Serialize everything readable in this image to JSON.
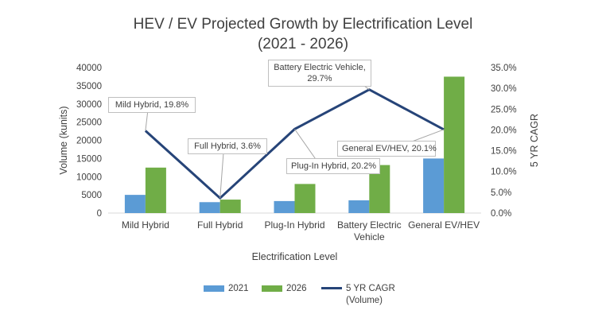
{
  "chart_data": {
    "type": "bar",
    "title_line1": "HEV / EV Projected Growth by Electrification Level",
    "title_line2": "(2021 - 2026)",
    "xlabel": "Electrification Level",
    "ylabel": "Volume (kunits)",
    "y2label": "5 YR CAGR",
    "categories": [
      [
        "Mild Hybrid"
      ],
      [
        "Full Hybrid"
      ],
      [
        "Plug-In Hybrid"
      ],
      [
        "Battery Electric",
        "Vehicle"
      ],
      [
        "General EV/HEV"
      ]
    ],
    "ylim": [
      0,
      40000
    ],
    "y_ticks": [
      "0",
      "5000",
      "10000",
      "15000",
      "20000",
      "25000",
      "30000",
      "35000",
      "40000"
    ],
    "y2lim": [
      0,
      0.35
    ],
    "y2_ticks": [
      "0.0%",
      "5.0%",
      "10.0%",
      "15.0%",
      "20.0%",
      "25.0%",
      "30.0%",
      "35.0%"
    ],
    "series": [
      {
        "name": "2021",
        "kind": "bar",
        "color": "#5b9bd5",
        "values": [
          5000,
          3000,
          3300,
          3500,
          15000
        ]
      },
      {
        "name": "2026",
        "kind": "bar",
        "color": "#70ad47",
        "values": [
          12500,
          3700,
          8000,
          13200,
          37500
        ]
      },
      {
        "name": "5 YR CAGR",
        "name_line2": "(Volume)",
        "kind": "line",
        "axis": "right",
        "color": "#264478",
        "values": [
          0.198,
          0.036,
          0.202,
          0.297,
          0.201
        ]
      }
    ],
    "annotations": [
      {
        "text": "Mild Hybrid, 19.8%"
      },
      {
        "text": "Full Hybrid, 3.6%"
      },
      {
        "text": "Plug-In Hybrid, 20.2%"
      },
      {
        "text": "Battery Electric Vehicle,",
        "text2": "29.7%"
      },
      {
        "text": "General EV/HEV, 20.1%"
      }
    ],
    "grid": false,
    "legend_position": "bottom"
  }
}
